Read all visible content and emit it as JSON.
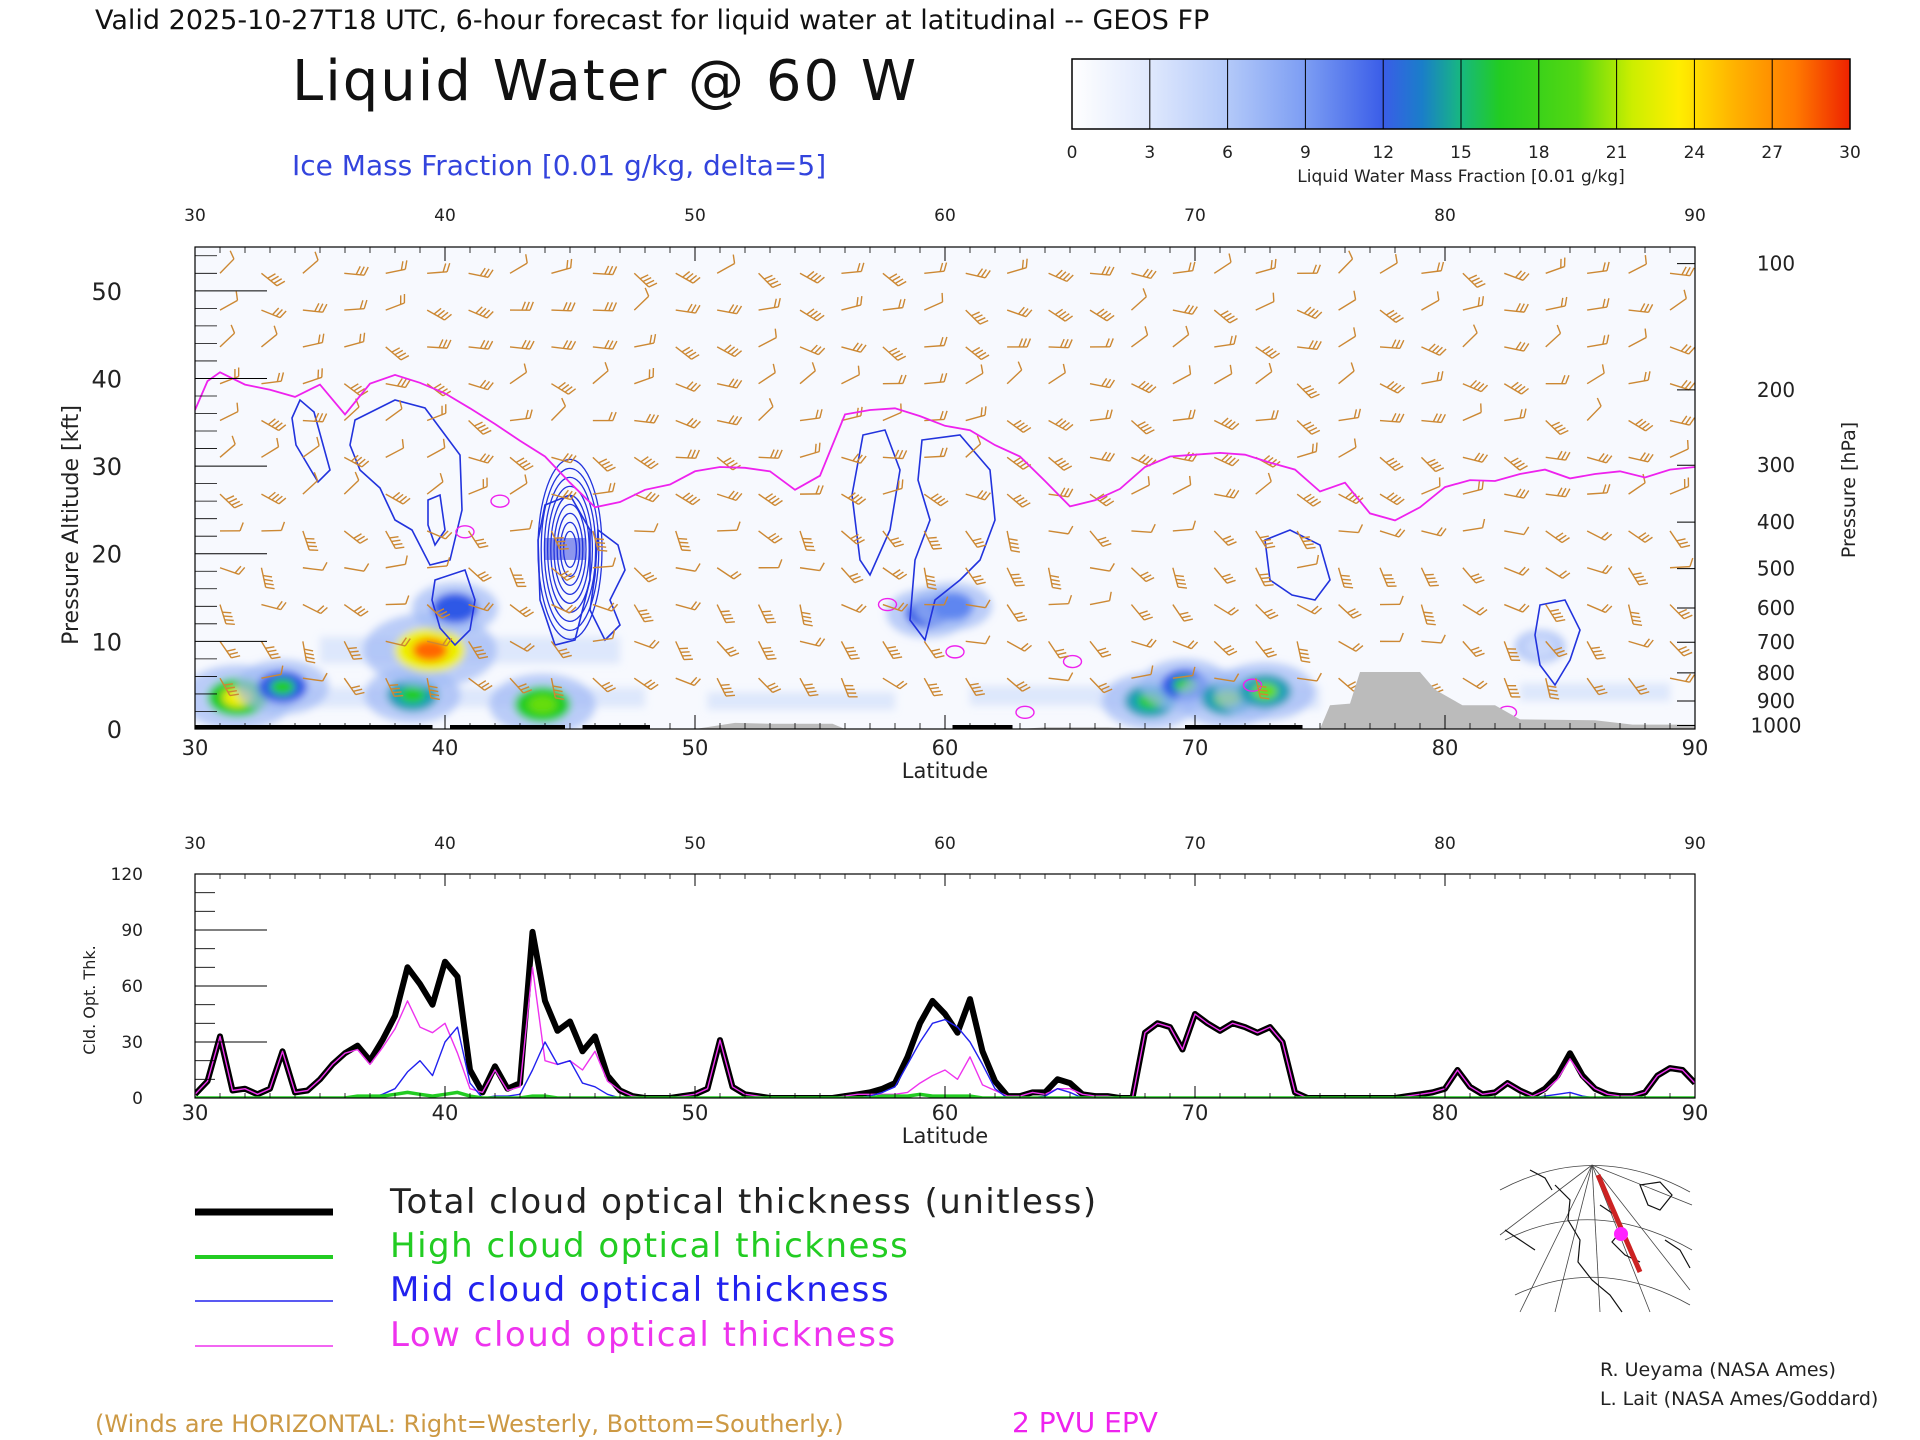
{
  "header": {
    "valid_line": "Valid 2025-10-27T18 UTC, 6-hour forecast for liquid water at latitudinal -- GEOS FP",
    "main_title": "Liquid Water @ 60 W",
    "ice_subtitle": "Ice Mass Fraction [0.01 g/kg, delta=5]"
  },
  "colorbar": {
    "ticks": [
      "0",
      "3",
      "6",
      "9",
      "12",
      "15",
      "18",
      "21",
      "24",
      "27",
      "30"
    ],
    "label": "Liquid Water Mass Fraction [0.01 g/kg]",
    "colors": [
      "#f4f8ff",
      "#cad9fb",
      "#98b5f6",
      "#5f86f0",
      "#2f59e6",
      "#1e9fb8",
      "#22cc22",
      "#66dd11",
      "#eeee00",
      "#ffaa00",
      "#ff6600",
      "#ee2200"
    ]
  },
  "legend": {
    "items": [
      {
        "label": "Total cloud optical thickness (unitless)",
        "color": "#000000",
        "text_color": "#222222"
      },
      {
        "label": "High cloud optical thickness",
        "color": "#22cc22",
        "text_color": "#22cc22"
      },
      {
        "label": "Mid cloud optical thickness",
        "color": "#2222ee",
        "text_color": "#2222ee"
      },
      {
        "label": "Low cloud optical thickness",
        "color": "#ee33ee",
        "text_color": "#ee33ee"
      }
    ]
  },
  "footer": {
    "winds_note": "(Winds are HORIZONTAL: Right=Westerly, Bottom=Southerly.)",
    "epv_label": "2 PVU EPV",
    "credit_1": "R. Ueyama (NASA Ames)",
    "credit_2": "L. Lait (NASA Ames/Goddard)"
  },
  "colors": {
    "wind_barb": "#cc8833",
    "epv": "#ee22ee",
    "ice_contour": "#2233dd",
    "terrain": "#bbbbbb",
    "route": "#cc2222",
    "marker": "#ff22ff"
  },
  "chart_data": [
    {
      "type": "heatmap",
      "name": "cross-section",
      "xlabel": "Latitude",
      "ylabel": "Pressure Altitude [kft]",
      "y2label": "Pressure [hPa]",
      "xlim": [
        30,
        90
      ],
      "ylim": [
        0,
        55
      ],
      "x_ticks": [
        30,
        40,
        50,
        60,
        70,
        80,
        90
      ],
      "y_ticks": [
        0,
        10,
        20,
        30,
        40,
        50
      ],
      "pressure_ticks": [
        {
          "label": "100",
          "kft": 53.1
        },
        {
          "label": "200",
          "kft": 38.7
        },
        {
          "label": "300",
          "kft": 30.1
        },
        {
          "label": "400",
          "kft": 23.6
        },
        {
          "label": "500",
          "kft": 18.3
        },
        {
          "label": "600",
          "kft": 13.8
        },
        {
          "label": "700",
          "kft": 9.9
        },
        {
          "label": "800",
          "kft": 6.4
        },
        {
          "label": "900",
          "kft": 3.2
        },
        {
          "label": "1000",
          "kft": 0.4
        }
      ],
      "liquid_water": [
        {
          "lat": 31.7,
          "alt": 3.6,
          "value": 22
        },
        {
          "lat": 33.5,
          "alt": 4.8,
          "value": 16
        },
        {
          "lat": 38.7,
          "alt": 3.9,
          "value": 17
        },
        {
          "lat": 39.4,
          "alt": 9.0,
          "value": 28
        },
        {
          "lat": 40.4,
          "alt": 13.8,
          "value": 14
        },
        {
          "lat": 43.9,
          "alt": 2.8,
          "value": 20
        },
        {
          "lat": 59.3,
          "alt": 13.2,
          "value": 13
        },
        {
          "lat": 60.3,
          "alt": 14.0,
          "value": 12
        },
        {
          "lat": 68.2,
          "alt": 3.2,
          "value": 17
        },
        {
          "lat": 69.6,
          "alt": 5.0,
          "value": 15
        },
        {
          "lat": 71.3,
          "alt": 3.5,
          "value": 18
        },
        {
          "lat": 72.8,
          "alt": 4.3,
          "value": 18
        },
        {
          "lat": 83.8,
          "alt": 9.4,
          "value": 4
        }
      ],
      "epv_2pvu_kft": [
        [
          30.0,
          36.4
        ],
        [
          30.5,
          39.7
        ],
        [
          31.0,
          40.7
        ],
        [
          32.0,
          39.3
        ],
        [
          33.0,
          38.7
        ],
        [
          34.0,
          37.9
        ],
        [
          35.0,
          39.3
        ],
        [
          36.0,
          35.9
        ],
        [
          37.0,
          39.4
        ],
        [
          38.0,
          40.4
        ],
        [
          39.0,
          39.5
        ],
        [
          40.0,
          38.3
        ],
        [
          41.0,
          36.6
        ],
        [
          42.0,
          34.8
        ],
        [
          43.0,
          32.9
        ],
        [
          44.0,
          31.1
        ],
        [
          45.0,
          28.1
        ],
        [
          46.0,
          25.3
        ],
        [
          47.0,
          25.9
        ],
        [
          48.0,
          27.3
        ],
        [
          49.0,
          27.9
        ],
        [
          50.0,
          29.4
        ],
        [
          51.0,
          29.9
        ],
        [
          52.0,
          29.8
        ],
        [
          53.0,
          29.4
        ],
        [
          54.0,
          27.3
        ],
        [
          55.0,
          28.9
        ],
        [
          56.0,
          35.9
        ],
        [
          57.0,
          36.4
        ],
        [
          58.0,
          36.6
        ],
        [
          59.0,
          35.7
        ],
        [
          60.0,
          34.6
        ],
        [
          61.0,
          34.1
        ],
        [
          62.0,
          32.4
        ],
        [
          63.0,
          31.1
        ],
        [
          64.0,
          28.3
        ],
        [
          65.0,
          25.4
        ],
        [
          66.0,
          26.1
        ],
        [
          67.0,
          27.4
        ],
        [
          68.0,
          29.9
        ],
        [
          69.0,
          31.1
        ],
        [
          70.0,
          31.3
        ],
        [
          71.0,
          31.5
        ],
        [
          72.0,
          31.3
        ],
        [
          73.0,
          30.4
        ],
        [
          74.0,
          29.6
        ],
        [
          75.0,
          27.1
        ],
        [
          76.0,
          28.1
        ],
        [
          77.0,
          24.6
        ],
        [
          78.0,
          23.8
        ],
        [
          79.0,
          25.3
        ],
        [
          80.0,
          27.6
        ],
        [
          81.0,
          28.4
        ],
        [
          82.0,
          28.3
        ],
        [
          83.0,
          29.1
        ],
        [
          84.0,
          29.6
        ],
        [
          85.0,
          28.6
        ],
        [
          86.0,
          29.1
        ],
        [
          87.0,
          29.4
        ],
        [
          88.0,
          28.7
        ],
        [
          89.0,
          29.6
        ],
        [
          90.0,
          29.9
        ]
      ],
      "terrain_kft": [
        [
          30,
          0
        ],
        [
          50,
          0
        ],
        [
          51.6,
          0.7
        ],
        [
          53,
          0.6
        ],
        [
          55.5,
          0.6
        ],
        [
          56,
          0
        ],
        [
          63,
          0
        ],
        [
          64,
          0.2
        ],
        [
          66.5,
          0.2
        ],
        [
          68,
          0
        ],
        [
          75,
          0
        ],
        [
          75.4,
          2.7
        ],
        [
          76.2,
          2.9
        ],
        [
          76.6,
          6.5
        ],
        [
          79,
          6.5
        ],
        [
          79.6,
          4.5
        ],
        [
          80.7,
          2.7
        ],
        [
          82,
          2.7
        ],
        [
          83,
          1.1
        ],
        [
          86,
          1.0
        ],
        [
          87.5,
          0.5
        ],
        [
          90,
          0.5
        ]
      ]
    },
    {
      "type": "line",
      "name": "cloud-optical-thickness",
      "xlabel": "Latitude",
      "ylabel": "Cld. Opt. Thk.",
      "xlim": [
        30,
        90
      ],
      "ylim": [
        0,
        120
      ],
      "x_ticks": [
        30,
        40,
        50,
        60,
        70,
        80,
        90
      ],
      "y_ticks": [
        0,
        30,
        60,
        90,
        120
      ],
      "x": [
        30.0,
        30.5,
        31.0,
        31.5,
        32.0,
        32.5,
        33.0,
        33.5,
        34.0,
        34.5,
        35.0,
        35.5,
        36.0,
        36.5,
        37.0,
        37.5,
        38.0,
        38.5,
        39.0,
        39.5,
        40.0,
        40.5,
        41.0,
        41.5,
        42.0,
        42.5,
        43.0,
        43.5,
        44.0,
        44.5,
        45.0,
        45.5,
        46.0,
        46.5,
        47.0,
        47.5,
        48.0,
        48.5,
        49.0,
        49.5,
        50.0,
        50.5,
        51.0,
        51.5,
        52.0,
        52.5,
        53.0,
        53.5,
        54.0,
        54.5,
        55.0,
        55.5,
        56.0,
        56.5,
        57.0,
        57.5,
        58.0,
        58.5,
        59.0,
        59.5,
        60.0,
        60.5,
        61.0,
        61.5,
        62.0,
        62.5,
        63.0,
        63.5,
        64.0,
        64.5,
        65.0,
        65.5,
        66.0,
        66.5,
        67.0,
        67.5,
        68.0,
        68.5,
        69.0,
        69.5,
        70.0,
        70.5,
        71.0,
        71.5,
        72.0,
        72.5,
        73.0,
        73.5,
        74.0,
        74.5,
        75.0,
        75.5,
        76.0,
        76.5,
        77.0,
        77.5,
        78.0,
        78.5,
        79.0,
        79.5,
        80.0,
        80.5,
        81.0,
        81.5,
        82.0,
        82.5,
        83.0,
        83.5,
        84.0,
        84.5,
        85.0,
        85.5,
        86.0,
        86.5,
        87.0,
        87.5,
        88.0,
        88.5,
        89.0,
        89.5,
        90.0
      ],
      "series": [
        {
          "name": "Total cloud optical thickness (unitless)",
          "color": "#000000",
          "values": [
            2,
            9,
            33,
            4,
            5,
            2,
            5,
            25,
            3,
            4,
            10,
            18,
            24,
            28,
            20,
            31,
            44,
            70,
            61,
            50,
            73,
            65,
            15,
            3,
            17,
            5,
            8,
            89,
            52,
            36,
            41,
            25,
            33,
            12,
            4,
            1,
            0,
            0,
            0,
            1,
            2,
            5,
            31,
            6,
            2,
            1,
            0,
            0,
            0,
            0,
            0,
            0,
            1,
            2,
            3,
            5,
            8,
            22,
            40,
            52,
            45,
            35,
            53,
            25,
            9,
            1,
            1,
            3,
            3,
            10,
            8,
            2,
            1,
            1,
            0,
            0,
            35,
            40,
            38,
            26,
            45,
            40,
            36,
            40,
            38,
            35,
            38,
            30,
            3,
            0,
            0,
            0,
            0,
            0,
            0,
            0,
            0,
            1,
            2,
            3,
            5,
            15,
            6,
            2,
            3,
            8,
            4,
            1,
            5,
            12,
            24,
            12,
            5,
            2,
            1,
            1,
            3,
            12,
            16,
            15,
            8
          ]
        },
        {
          "name": "High cloud optical thickness",
          "color": "#22cc22",
          "values": [
            0,
            0,
            0,
            0,
            0,
            0,
            0,
            0,
            0,
            0,
            0,
            0,
            0,
            1,
            1,
            1,
            2,
            3,
            2,
            1,
            2,
            3,
            1,
            0,
            0,
            0,
            0,
            1,
            1,
            0,
            0,
            0,
            0,
            0,
            0,
            0,
            0,
            0,
            0,
            0,
            0,
            0,
            0,
            0,
            0,
            0,
            0,
            0,
            0,
            0,
            0,
            0,
            0,
            0,
            0,
            1,
            1,
            1,
            2,
            1,
            1,
            1,
            1,
            0,
            0,
            0,
            0,
            0,
            0,
            0,
            0,
            0,
            0,
            0,
            0,
            0,
            0,
            0,
            0,
            0,
            0,
            0,
            0,
            0,
            0,
            0,
            0,
            0,
            0,
            0,
            0,
            0,
            0,
            0,
            0,
            0,
            0,
            0,
            0,
            0,
            0,
            0,
            0,
            0,
            0,
            0,
            0,
            0,
            0,
            0,
            0,
            0,
            0,
            0,
            0,
            0,
            0,
            0,
            0,
            0,
            0
          ]
        },
        {
          "name": "Mid cloud optical thickness",
          "color": "#2222ee",
          "values": [
            0,
            0,
            0,
            0,
            0,
            0,
            0,
            0,
            0,
            0,
            0,
            0,
            0,
            0,
            0,
            2,
            5,
            14,
            20,
            12,
            30,
            38,
            8,
            0,
            1,
            1,
            2,
            15,
            30,
            18,
            20,
            8,
            6,
            2,
            0,
            0,
            0,
            0,
            0,
            0,
            0,
            0,
            0,
            0,
            0,
            0,
            0,
            0,
            0,
            0,
            0,
            0,
            0,
            0,
            1,
            3,
            6,
            18,
            30,
            40,
            42,
            38,
            30,
            18,
            5,
            0,
            0,
            0,
            1,
            5,
            3,
            0,
            0,
            0,
            0,
            0,
            0,
            0,
            0,
            0,
            0,
            0,
            0,
            0,
            0,
            0,
            0,
            0,
            0,
            0,
            0,
            0,
            0,
            0,
            0,
            0,
            0,
            0,
            0,
            0,
            0,
            0,
            0,
            0,
            0,
            0,
            0,
            0,
            1,
            2,
            3,
            1,
            0,
            0,
            0,
            0,
            0,
            0,
            0,
            0,
            0
          ]
        },
        {
          "name": "Low cloud optical thickness",
          "color": "#ee33ee",
          "values": [
            2,
            9,
            33,
            4,
            5,
            2,
            5,
            25,
            3,
            4,
            10,
            18,
            24,
            26,
            18,
            27,
            37,
            52,
            38,
            35,
            40,
            24,
            5,
            3,
            15,
            4,
            6,
            70,
            20,
            18,
            20,
            15,
            25,
            9,
            4,
            1,
            0,
            0,
            0,
            1,
            2,
            5,
            31,
            6,
            2,
            1,
            0,
            0,
            0,
            0,
            0,
            0,
            1,
            2,
            2,
            2,
            2,
            3,
            8,
            12,
            15,
            10,
            22,
            7,
            4,
            1,
            1,
            3,
            2,
            5,
            5,
            2,
            1,
            1,
            0,
            0,
            35,
            40,
            38,
            26,
            45,
            40,
            36,
            40,
            38,
            35,
            38,
            30,
            3,
            0,
            0,
            0,
            0,
            0,
            0,
            0,
            0,
            1,
            2,
            3,
            5,
            15,
            6,
            2,
            3,
            8,
            4,
            1,
            4,
            10,
            21,
            11,
            5,
            2,
            1,
            1,
            3,
            12,
            16,
            15,
            8
          ]
        }
      ]
    }
  ]
}
